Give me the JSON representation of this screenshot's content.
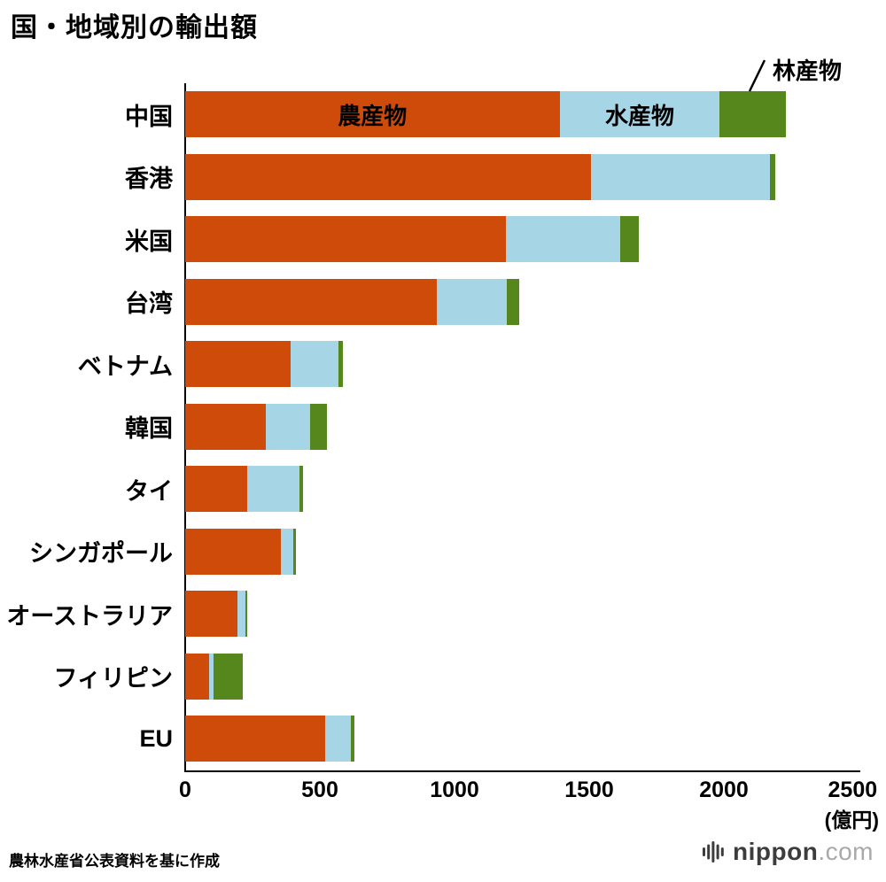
{
  "header": {
    "title": "国・地域別の輸出額"
  },
  "chart_data": {
    "type": "bar",
    "orientation": "horizontal",
    "stacked": true,
    "title": "国・地域別の輸出額",
    "unit_label": "(億円)",
    "xlim": [
      0,
      2500
    ],
    "x_ticks": [
      0,
      500,
      1000,
      1500,
      2000,
      2500
    ],
    "grid": false,
    "legend_position": "inline",
    "categories": [
      "中国",
      "香港",
      "米国",
      "台湾",
      "ベトナム",
      "韓国",
      "タイ",
      "シンガポール",
      "オーストラリア",
      "フィリピン",
      "EU"
    ],
    "series": [
      {
        "name": "農産物",
        "color": "#ce4b0a",
        "values": [
          1390,
          1505,
          1190,
          935,
          390,
          300,
          230,
          355,
          195,
          90,
          520
        ]
      },
      {
        "name": "水産物",
        "color": "#a6d5e6",
        "values": [
          595,
          665,
          425,
          260,
          180,
          165,
          195,
          45,
          30,
          15,
          95
        ]
      },
      {
        "name": "林産物",
        "color": "#56871d",
        "values": [
          245,
          20,
          70,
          45,
          15,
          60,
          12,
          10,
          6,
          110,
          12
        ]
      }
    ],
    "annotations": {
      "forest_label": "林産物",
      "agri_inline_label": "農産物",
      "marine_inline_label": "水産物"
    }
  },
  "footer": {
    "source": "農林水産省公表資料を基に作成",
    "logo": {
      "name": "nippon",
      "suffix": ".com",
      "icon": "soundwave-bars-icon"
    }
  }
}
